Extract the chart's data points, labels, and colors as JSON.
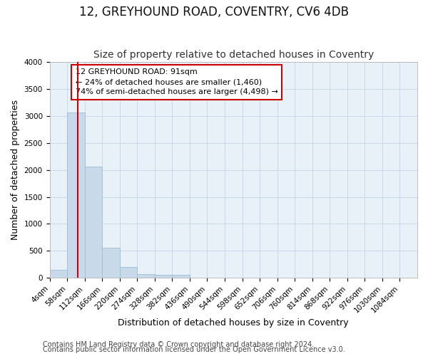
{
  "title": "12, GREYHOUND ROAD, COVENTRY, CV6 4DB",
  "subtitle": "Size of property relative to detached houses in Coventry",
  "xlabel": "Distribution of detached houses by size in Coventry",
  "ylabel": "Number of detached properties",
  "footnote1": "Contains HM Land Registry data © Crown copyright and database right 2024.",
  "footnote2": "Contains public sector information licensed under the Open Government Licence v3.0.",
  "annotation_line1": "12 GREYHOUND ROAD: 91sqm",
  "annotation_line2": "← 24% of detached houses are smaller (1,460)",
  "annotation_line3": "74% of semi-detached houses are larger (4,498) →",
  "property_sqm": 91,
  "bar_left_edges": [
    4,
    58,
    112,
    166,
    220,
    274,
    328,
    382,
    436,
    490,
    544,
    598,
    652,
    706,
    760,
    814,
    868,
    922,
    976,
    1030
  ],
  "bar_heights": [
    150,
    3070,
    2060,
    560,
    200,
    75,
    60,
    50,
    0,
    0,
    0,
    0,
    0,
    0,
    0,
    0,
    0,
    0,
    0,
    0
  ],
  "bin_width": 54,
  "bar_color": "#c8daea",
  "bar_edge_color": "#9bbdd4",
  "vline_color": "#cc0000",
  "annotation_box_edge_color": "#cc0000",
  "annotation_box_face_color": "#ffffff",
  "grid_color": "#c8d8e8",
  "bg_color": "#ffffff",
  "plot_bg_color": "#e8f0f8",
  "ylim": [
    0,
    4000
  ],
  "yticks": [
    0,
    500,
    1000,
    1500,
    2000,
    2500,
    3000,
    3500,
    4000
  ],
  "tick_labels": [
    "4sqm",
    "58sqm",
    "112sqm",
    "166sqm",
    "220sqm",
    "274sqm",
    "328sqm",
    "382sqm",
    "436sqm",
    "490sqm",
    "544sqm",
    "598sqm",
    "652sqm",
    "706sqm",
    "760sqm",
    "814sqm",
    "868sqm",
    "922sqm",
    "976sqm",
    "1030sqm",
    "1084sqm"
  ],
  "title_fontsize": 12,
  "subtitle_fontsize": 10,
  "axis_label_fontsize": 9,
  "tick_fontsize": 7.5,
  "annotation_fontsize": 8,
  "footnote_fontsize": 7
}
